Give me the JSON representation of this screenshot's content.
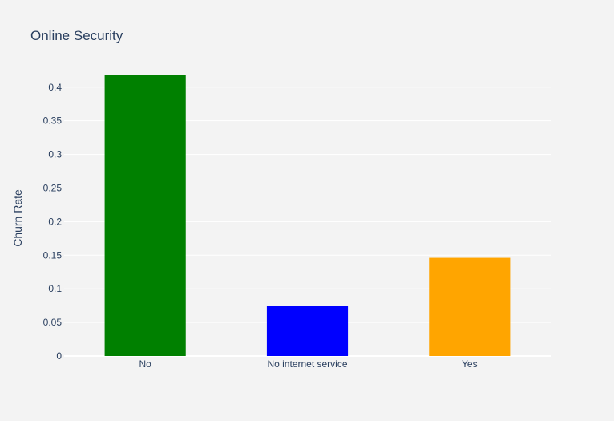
{
  "chart_data": {
    "type": "bar",
    "title": "Online Security",
    "xlabel": "",
    "ylabel": "Churn Rate",
    "categories": [
      "No",
      "No internet service",
      "Yes"
    ],
    "values": [
      0.4177,
      0.0741,
      0.1461
    ],
    "colors": [
      "#008000",
      "#0000ff",
      "#ffa500"
    ],
    "ylim": [
      0,
      0.42
    ],
    "yticks": [
      0,
      0.05,
      0.1,
      0.15,
      0.2,
      0.25,
      0.3,
      0.35,
      0.4
    ],
    "ytick_labels": [
      "0",
      "0.05",
      "0.1",
      "0.15",
      "0.2",
      "0.25",
      "0.3",
      "0.35",
      "0.4"
    ],
    "grid": true,
    "legend": "none"
  }
}
